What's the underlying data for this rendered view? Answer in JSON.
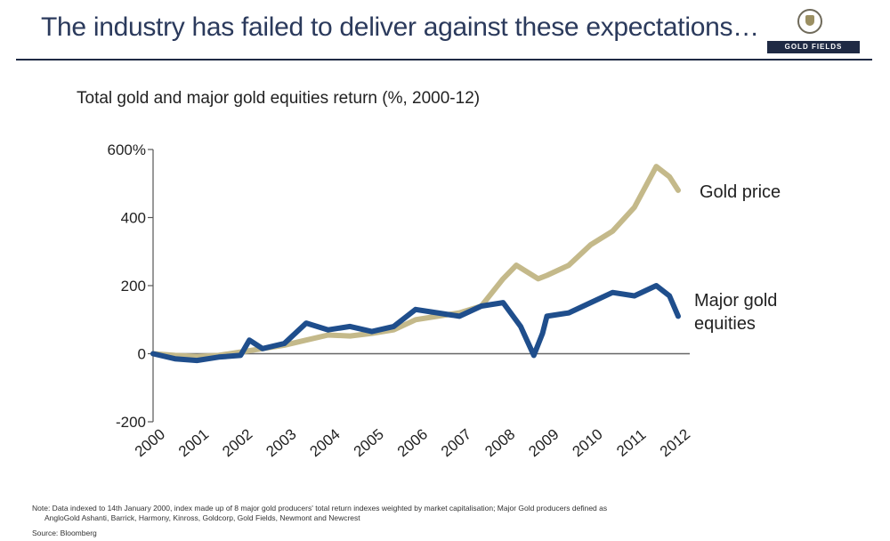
{
  "header": {
    "title": "The industry has failed to deliver against these expectations…",
    "logo_text": "GOLD FIELDS"
  },
  "chart_data": {
    "type": "line",
    "title": "Total gold and major gold equities return (%, 2000-12)",
    "xlabel": "",
    "ylabel": "",
    "xlim": [
      2000,
      2012
    ],
    "ylim": [
      -200,
      600
    ],
    "x_ticks": [
      "2000",
      "2001",
      "2002",
      "2003",
      "2004",
      "2005",
      "2006",
      "2007",
      "2008",
      "2009",
      "2010",
      "2011",
      "2012"
    ],
    "y_ticks": [
      {
        "value": 600,
        "label": "600%"
      },
      {
        "value": 400,
        "label": "400"
      },
      {
        "value": 200,
        "label": "200"
      },
      {
        "value": 0,
        "label": "0"
      },
      {
        "value": -200,
        "label": "-200"
      }
    ],
    "series": [
      {
        "name": "Gold price",
        "label": "Gold price",
        "color": "#c4b98a",
        "points": [
          [
            2000,
            0
          ],
          [
            2000.5,
            -5
          ],
          [
            2001,
            -8
          ],
          [
            2001.5,
            -5
          ],
          [
            2002,
            5
          ],
          [
            2002.5,
            15
          ],
          [
            2003,
            25
          ],
          [
            2003.5,
            40
          ],
          [
            2004,
            55
          ],
          [
            2004.5,
            52
          ],
          [
            2005,
            60
          ],
          [
            2005.5,
            70
          ],
          [
            2006,
            100
          ],
          [
            2006.5,
            110
          ],
          [
            2007,
            120
          ],
          [
            2007.5,
            140
          ],
          [
            2008,
            220
          ],
          [
            2008.3,
            260
          ],
          [
            2008.8,
            220
          ],
          [
            2009,
            230
          ],
          [
            2009.5,
            260
          ],
          [
            2010,
            320
          ],
          [
            2010.5,
            360
          ],
          [
            2011,
            430
          ],
          [
            2011.5,
            550
          ],
          [
            2011.8,
            520
          ],
          [
            2012,
            480
          ]
        ]
      },
      {
        "name": "Major gold equities",
        "label": [
          "Major gold",
          "equities"
        ],
        "color": "#1f4e8c",
        "points": [
          [
            2000,
            0
          ],
          [
            2000.5,
            -15
          ],
          [
            2001,
            -20
          ],
          [
            2001.5,
            -10
          ],
          [
            2002,
            -5
          ],
          [
            2002.2,
            40
          ],
          [
            2002.5,
            15
          ],
          [
            2003,
            30
          ],
          [
            2003.5,
            90
          ],
          [
            2004,
            70
          ],
          [
            2004.5,
            80
          ],
          [
            2005,
            65
          ],
          [
            2005.5,
            80
          ],
          [
            2006,
            130
          ],
          [
            2006.5,
            120
          ],
          [
            2007,
            110
          ],
          [
            2007.5,
            140
          ],
          [
            2008,
            150
          ],
          [
            2008.4,
            80
          ],
          [
            2008.7,
            -5
          ],
          [
            2008.9,
            60
          ],
          [
            2009,
            110
          ],
          [
            2009.5,
            120
          ],
          [
            2010,
            150
          ],
          [
            2010.5,
            180
          ],
          [
            2011,
            170
          ],
          [
            2011.5,
            200
          ],
          [
            2011.8,
            170
          ],
          [
            2012,
            110
          ]
        ]
      }
    ]
  },
  "note": {
    "line1": "Note: Data indexed to 14th January 2000, index made up of 8 major gold producers' total return indexes weighted by market capitalisation; Major Gold producers defined as",
    "line2": "AngloGold Ashanti, Barrick, Harmony, Kinross, Goldcorp, Gold Fields, Newmont and Newcrest",
    "source": "Source: Bloomberg"
  }
}
